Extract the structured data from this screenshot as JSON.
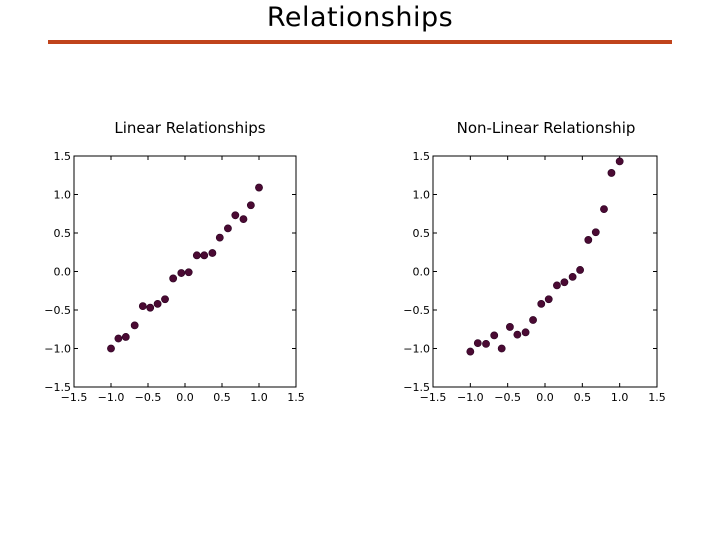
{
  "slide": {
    "title": "Relationships",
    "accent_color": "#c0441c"
  },
  "marker_color": "#4a0a33",
  "chart_data": [
    {
      "type": "scatter",
      "title": "Linear Relationships",
      "xlabel": "",
      "ylabel": "",
      "xlim": [
        -1.5,
        1.5
      ],
      "ylim": [
        -1.5,
        1.5
      ],
      "xticks": [
        "−1.5",
        "−1.0",
        "−0.5",
        "0.0",
        "0.5",
        "1.0",
        "1.5"
      ],
      "yticks": [
        "1.5",
        "1.0",
        "0.5",
        "0.0",
        "−0.5",
        "−1.0",
        "−1.5"
      ],
      "grid": false,
      "series": [
        {
          "x": [
            -1.0,
            -0.9,
            -0.8,
            -0.68,
            -0.57,
            -0.47,
            -0.37,
            -0.27,
            -0.16,
            -0.05,
            0.05,
            0.16,
            0.26,
            0.37,
            0.47,
            0.58,
            0.68,
            0.79,
            0.89,
            1.0
          ],
          "y": [
            -1.0,
            -0.87,
            -0.85,
            -0.7,
            -0.45,
            -0.47,
            -0.42,
            -0.36,
            -0.09,
            -0.02,
            -0.01,
            0.21,
            0.21,
            0.24,
            0.44,
            0.56,
            0.73,
            0.68,
            0.86,
            1.09
          ]
        }
      ]
    },
    {
      "type": "scatter",
      "title": "Non-Linear Relationship",
      "xlabel": "",
      "ylabel": "",
      "xlim": [
        -1.5,
        1.5
      ],
      "ylim": [
        -1.5,
        1.5
      ],
      "xticks": [
        "−1.5",
        "−1.0",
        "−0.5",
        "0.0",
        "0.5",
        "1.0",
        "1.5"
      ],
      "yticks": [
        "1.5",
        "1.0",
        "0.5",
        "0.0",
        "−0.5",
        "−1.0",
        "−1.5"
      ],
      "grid": false,
      "series": [
        {
          "x": [
            -1.0,
            -0.9,
            -0.79,
            -0.68,
            -0.58,
            -0.47,
            -0.37,
            -0.26,
            -0.16,
            -0.05,
            0.05,
            0.16,
            0.26,
            0.37,
            0.47,
            0.58,
            0.68,
            0.79,
            0.89,
            1.0
          ],
          "y": [
            -1.04,
            -0.93,
            -0.94,
            -0.83,
            -1.0,
            -0.72,
            -0.82,
            -0.79,
            -0.63,
            -0.42,
            -0.36,
            -0.18,
            -0.14,
            -0.07,
            0.02,
            0.41,
            0.51,
            0.81,
            1.28,
            1.43
          ]
        }
      ]
    }
  ]
}
